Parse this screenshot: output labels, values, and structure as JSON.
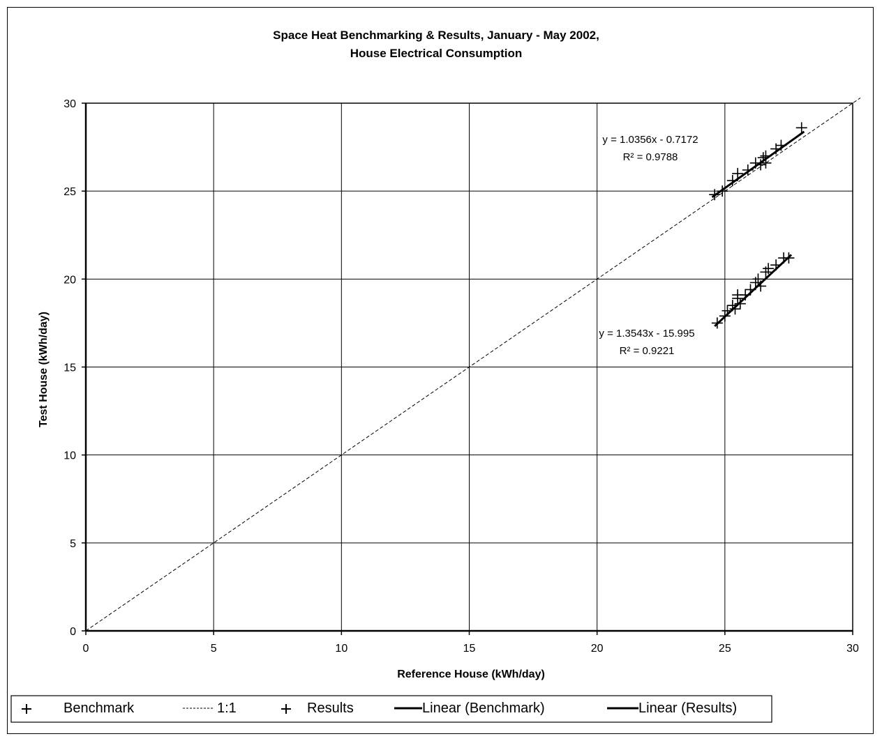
{
  "chart_data": {
    "type": "scatter",
    "title": "Space Heat Benchmarking & Results, January - May 2002,",
    "subtitle": "House Electrical Consumption",
    "xlabel": "Reference House (kWh/day)",
    "ylabel": "Test House (kWh/day)",
    "xlim": [
      0,
      30
    ],
    "ylim": [
      0,
      30
    ],
    "xticks": [
      "0",
      "5",
      "10",
      "15",
      "20",
      "25",
      "30"
    ],
    "yticks": [
      "0",
      "5",
      "10",
      "15",
      "20",
      "25",
      "30"
    ],
    "grid": true,
    "legend_position": "bottom",
    "series": [
      {
        "name": "Benchmark",
        "marker": "plus",
        "points": [
          [
            24.6,
            24.8
          ],
          [
            24.9,
            25.0
          ],
          [
            25.3,
            25.6
          ],
          [
            25.5,
            26.0
          ],
          [
            25.9,
            26.2
          ],
          [
            26.2,
            26.6
          ],
          [
            26.4,
            26.5
          ],
          [
            26.5,
            26.9
          ],
          [
            26.6,
            26.6
          ],
          [
            26.6,
            27.0
          ],
          [
            27.0,
            27.4
          ],
          [
            27.2,
            27.6
          ],
          [
            28.0,
            28.6
          ]
        ]
      },
      {
        "name": "Results",
        "marker": "plus",
        "points": [
          [
            24.7,
            17.5
          ],
          [
            25.0,
            17.9
          ],
          [
            25.1,
            18.2
          ],
          [
            25.3,
            18.5
          ],
          [
            25.4,
            18.3
          ],
          [
            25.5,
            18.9
          ],
          [
            25.5,
            19.1
          ],
          [
            25.6,
            18.6
          ],
          [
            25.8,
            19.1
          ],
          [
            26.0,
            19.4
          ],
          [
            26.2,
            19.8
          ],
          [
            26.3,
            20.0
          ],
          [
            26.4,
            19.6
          ],
          [
            26.6,
            20.4
          ],
          [
            26.7,
            20.6
          ],
          [
            27.0,
            20.8
          ],
          [
            27.3,
            21.2
          ],
          [
            27.5,
            21.2
          ]
        ]
      }
    ],
    "one_to_one": {
      "name": "1:1",
      "style": "dashed",
      "from": [
        0,
        0
      ],
      "to": [
        30,
        30
      ]
    },
    "trendlines": [
      {
        "name": "Linear (Benchmark)",
        "slope": 1.0356,
        "intercept": -0.7172,
        "x_range": [
          24.5,
          28.1
        ],
        "equation": "y = 1.0356x - 0.7172",
        "r2": "R² = 0.9788"
      },
      {
        "name": "Linear (Results)",
        "slope": 1.3543,
        "intercept": -15.995,
        "x_range": [
          24.6,
          27.6
        ],
        "equation": "y = 1.3543x - 15.995",
        "r2": "R² = 0.9221"
      }
    ],
    "legend_entries": [
      "Benchmark",
      "1:1",
      "Results",
      "Linear (Benchmark)",
      "Linear (Results)"
    ]
  }
}
